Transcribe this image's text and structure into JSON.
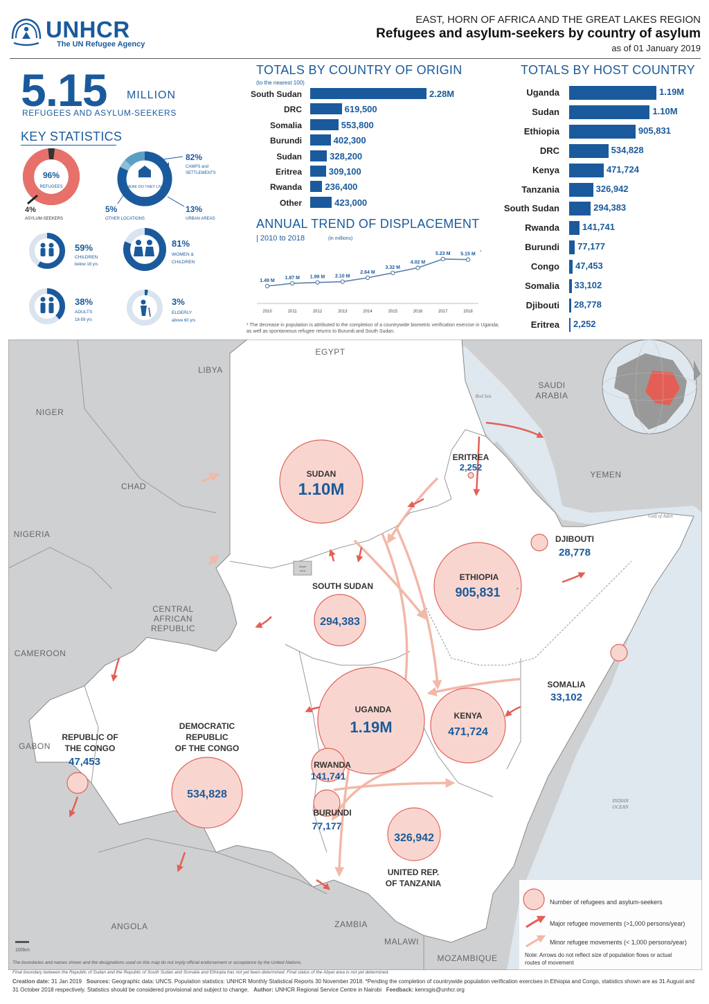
{
  "header": {
    "logo_name": "UNHCR",
    "logo_sub": "The UN Refugee Agency",
    "region": "EAST, HORN OF AFRICA AND THE GREAT LAKES REGION",
    "title": "Refugees and asylum-seekers by country of asylum",
    "date": "as of 01 January 2019"
  },
  "total": {
    "number": "5.15",
    "unit": "MILLION",
    "subtitle": "REFUGEES AND ASYLUM-SEEKERS"
  },
  "key_statistics": {
    "title": "KEY STATISTICS",
    "refugees": {
      "value": "96%",
      "label": "REFUGEES",
      "fraction": 0.96
    },
    "asylum": {
      "value": "4%",
      "label": "ASYLUM-SEEKERS"
    },
    "where": {
      "center": "WHERE DO THEY LIVE?",
      "camps": {
        "value": "82%",
        "label1": "CAMPS and",
        "label2": "SETTLEMENTS",
        "fraction": 0.82
      },
      "other": {
        "value": "5%",
        "label": "OTHER LOCATIONS",
        "fraction": 0.05
      },
      "urban": {
        "value": "13%",
        "label": "URBAN AREAS",
        "fraction": 0.13
      }
    },
    "children": {
      "value": "59%",
      "label1": "CHILDREN",
      "label2": "below 18 yrs",
      "fraction": 0.59
    },
    "women": {
      "value": "81%",
      "label1": "WOMEN &",
      "label2": "CHILDREN",
      "fraction": 0.81
    },
    "adults": {
      "value": "38%",
      "label1": "ADULTS",
      "label2": "18-59 yrs",
      "fraction": 0.38
    },
    "elderly": {
      "value": "3%",
      "label1": "ELDERLY",
      "label2": "above 60 yrs",
      "fraction": 0.03
    }
  },
  "origin": {
    "title": "TOTALS BY COUNTRY OF ORIGIN",
    "subtitle": "(to the nearest 100)",
    "items": [
      {
        "country": "South Sudan",
        "label": "2.28M",
        "value": 2280000
      },
      {
        "country": "DRC",
        "label": "619,500",
        "value": 619500
      },
      {
        "country": "Somalia",
        "label": "553,800",
        "value": 553800
      },
      {
        "country": "Burundi",
        "label": "402,300",
        "value": 402300
      },
      {
        "country": "Sudan",
        "label": "328,200",
        "value": 328200
      },
      {
        "country": "Eritrea",
        "label": "309,100",
        "value": 309100
      },
      {
        "country": "Rwanda",
        "label": "236,400",
        "value": 236400
      },
      {
        "country": "Other",
        "label": "423,000",
        "value": 423000
      }
    ]
  },
  "host": {
    "title": "TOTALS BY HOST COUNTRY",
    "items": [
      {
        "country": "Uganda",
        "label": "1.19M",
        "value": 1190000
      },
      {
        "country": "Sudan",
        "label": "1.10M",
        "value": 1100000
      },
      {
        "country": "Ethiopia",
        "label": "905,831",
        "value": 905831
      },
      {
        "country": "DRC",
        "label": "534,828",
        "value": 534828
      },
      {
        "country": "Kenya",
        "label": "471,724",
        "value": 471724
      },
      {
        "country": "Tanzania",
        "label": "326,942",
        "value": 326942
      },
      {
        "country": "South Sudan",
        "label": "294,383",
        "value": 294383
      },
      {
        "country": "Rwanda",
        "label": "141,741",
        "value": 141741
      },
      {
        "country": "Burundi",
        "label": "77,177",
        "value": 77177
      },
      {
        "country": "Congo",
        "label": "47,453",
        "value": 47453
      },
      {
        "country": "Somalia",
        "label": "33,102",
        "value": 33102
      },
      {
        "country": "Djibouti",
        "label": "28,778",
        "value": 28778
      },
      {
        "country": "Eritrea",
        "label": "2,252",
        "value": 2252
      }
    ]
  },
  "trend": {
    "title": "ANNUAL TREND OF DISPLACEMENT",
    "subtitle": "| 2010  to  2018",
    "subtitle_note": "(in millions)",
    "asterisk": "*",
    "footnote": "* The decrease in population is attributed to the completion of a countrywide biometric verification exercise in Uganda; as well as spontaneous refugee returns to Burundi and South Sudan."
  },
  "chart_data": {
    "type": "line",
    "x": [
      "2010",
      "2011",
      "2012",
      "2013",
      "2014",
      "2015",
      "2016",
      "2017",
      "2018"
    ],
    "series": [
      {
        "values": [
          1.49,
          1.87,
          1.99,
          2.1,
          2.64,
          3.32,
          4.02,
          5.23,
          5.15
        ],
        "labels": [
          "1.49 M",
          "1.87 M",
          "1.99 M",
          "2.10 M",
          "2.64 M",
          "3.32 M",
          "4.02 M",
          "5.23 M",
          "5.15 M"
        ]
      }
    ]
  },
  "map": {
    "neighbors": [
      "EGYPT",
      "LIBYA",
      "NIGER",
      "CHAD",
      "NIGERIA",
      "CENTRAL",
      "AFRICAN",
      "REPUBLIC",
      "CAMEROON",
      "GABON",
      "ANGOLA",
      "ZAMBIA",
      "MALAWI",
      "MOZAMBIQUE",
      "SAUDI",
      "ARABIA",
      "YEMEN"
    ],
    "water": [
      "Red Sea",
      "Gulf of Aden",
      "INDIAN",
      "OCEAN"
    ],
    "abyei": [
      "Abyei",
      "area"
    ],
    "circles": [
      {
        "name": "SUDAN",
        "value": "1.10M"
      },
      {
        "name": "ERITREA",
        "value": "2,252"
      },
      {
        "name": "DJIBOUTI",
        "value": "28,778"
      },
      {
        "name": "ETHIOPIA",
        "value": "905,831",
        "mark": "*"
      },
      {
        "name": "SOUTH SUDAN",
        "value": "294,383"
      },
      {
        "name": "SOMALIA",
        "value": "33,102"
      },
      {
        "name": "UGANDA",
        "value": "1.19M"
      },
      {
        "name": "KENYA",
        "value": "471,724"
      },
      {
        "name": "REPUBLIC OF",
        "name2": "THE CONGO",
        "value": "47,453"
      },
      {
        "name": "DEMOCRATIC",
        "name2": "REPUBLIC",
        "name3": "OF THE CONGO",
        "value": "534,828"
      },
      {
        "name": "RWANDA",
        "value": "141,741"
      },
      {
        "name": "BURUNDI",
        "value": "77,177"
      },
      {
        "name": "UNITED REP.",
        "name2": "OF TANZANIA",
        "value": "326,942"
      }
    ],
    "scale": "100km",
    "legend": {
      "circle": "Number of refugees and asylum-seekers",
      "major": "Major refugee movements (>1,000 persons/year)",
      "minor": "Minor refugee movements (< 1,000 persons/year)",
      "note1": "Note: Arrows do not reflect size of population flows or actual",
      "note2": "routes of movement"
    }
  },
  "footer": {
    "disclaimer": "The boundaries and names shown and the designations used on this map do not imply official endorsement or acceptance by the United Nations.",
    "disclaimer2": "Final boundary between the Republic of Sudan and the Republic of South Sudan and Somalia and Ethiopia has not yet been determined. Final status of the Abyei area is not yet determined.",
    "creation_label": "Creation date:",
    "creation": "31 Jan 2019",
    "sources_label": "Sources:",
    "sources": "Geographic data: UNCS. Population statistics: UNHCR Monthly Statistical Reports 30 November 2018. *Pending the completion of countrywide population verification exercises in Ethiopia and Congo, statistics shown are as 31 August and 31 October 2018 respectively. Statistics should be considered provisional and subject to change.",
    "author_label": "Author:",
    "author": "UNHCR Regional Service Centre in Nairobi",
    "feedback_label": "Feedback:",
    "feedback": "kenrsgis@unhcr.org"
  },
  "colors": {
    "primary": "#1a5a9c",
    "circle_fill": "#f8d6cf",
    "circle_stroke": "#e0605a",
    "arrow_major": "#e35f55",
    "arrow_minor": "#f2b8a8",
    "land_gray": "#cfd0d2",
    "water": "#dfe7ef"
  }
}
